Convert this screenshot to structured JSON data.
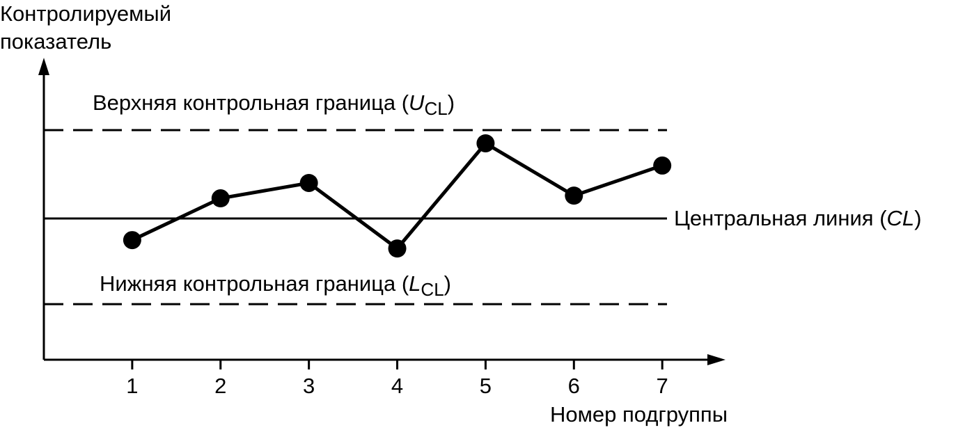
{
  "chart_data": {
    "type": "line",
    "y_label": [
      "Контролируемый",
      "показатель"
    ],
    "x_label": "Номер подгруппы",
    "x": [
      1,
      2,
      3,
      4,
      5,
      6,
      7
    ],
    "values": [
      39.8,
      53.7,
      58.8,
      37.0,
      72.0,
      54.6,
      64.6
    ],
    "color": "#000000",
    "xlim": [
      0,
      7.7
    ],
    "xticks": [
      1,
      2,
      3,
      4,
      5,
      6,
      7
    ],
    "ylim": [
      0,
      100
    ],
    "reference_lines": [
      {
        "value": 76.4,
        "style": "dashed",
        "label": {
          "text": "Верхняя контрольная граница (",
          "symbol": "U",
          "subscript": "CL",
          "close": ")"
        }
      },
      {
        "value": 47.0,
        "style": "solid",
        "label": {
          "text": "Центральная линия (",
          "symbol": "CL",
          "close": ")"
        }
      },
      {
        "value": 18.5,
        "style": "dashed",
        "label": {
          "text": "Нижняя контрольная граница (",
          "symbol": "L",
          "subscript": "CL",
          "close": ")"
        }
      }
    ]
  }
}
